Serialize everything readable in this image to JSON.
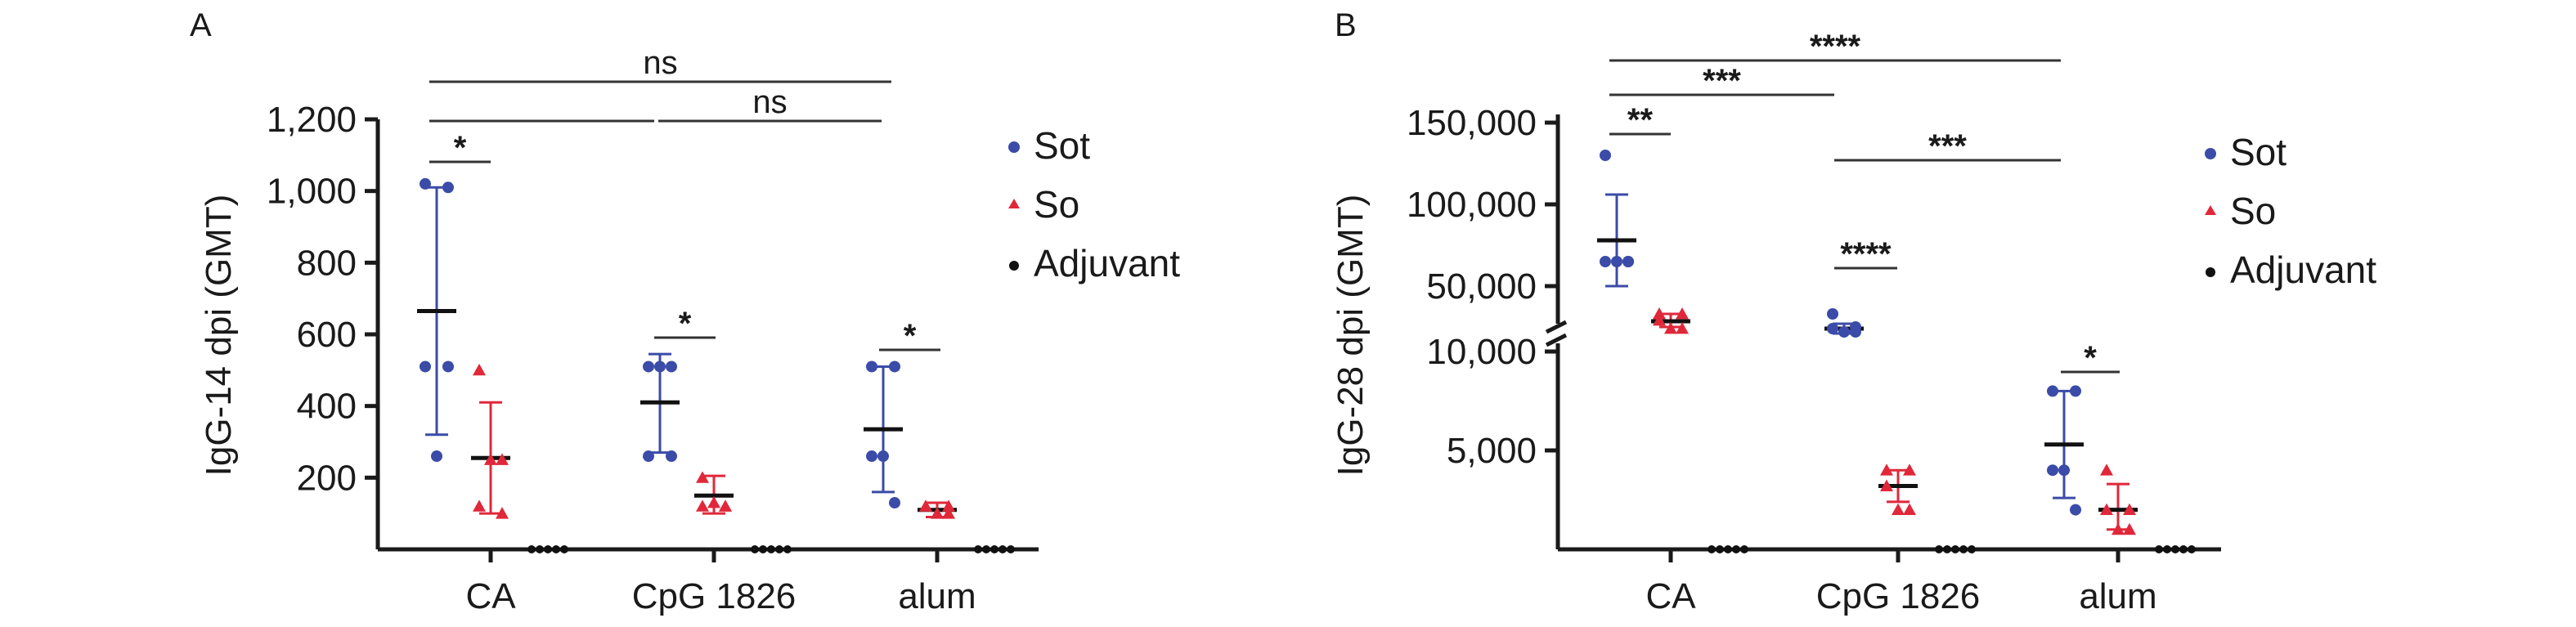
{
  "colors": {
    "Sot": "#3b4ba8",
    "So": "#e0283a",
    "Adjuvant": "#111111",
    "axis": "#1a1a1a"
  },
  "chart_data": [
    {
      "panel": "A",
      "type": "scatter",
      "ylabel": "IgG-14 dpi (GMT)",
      "ylim": [
        0,
        1200
      ],
      "yticks": [
        200,
        400,
        600,
        800,
        1000,
        1200
      ],
      "ytick_labels": [
        "200",
        "400",
        "600",
        "800",
        "1,000",
        "1,200"
      ],
      "categories": [
        "CA",
        "CpG 1826",
        "alum"
      ],
      "legend": [
        "Sot",
        "So",
        "Adjuvant"
      ],
      "legend_position": "right",
      "groups": [
        {
          "category": "CA",
          "series": "Sot",
          "points": [
            1020,
            1010,
            510,
            510,
            260
          ],
          "mean": 665,
          "sd_low": 320,
          "sd_high": 1010
        },
        {
          "category": "CA",
          "series": "So",
          "points": [
            500,
            250,
            120,
            100,
            250
          ],
          "mean": 255,
          "sd_low": 100,
          "sd_high": 410
        },
        {
          "category": "CA",
          "series": "Adjuvant",
          "points": [
            0,
            0,
            0,
            0,
            0
          ]
        },
        {
          "category": "CpG 1826",
          "series": "Sot",
          "points": [
            510,
            510,
            260,
            260,
            510
          ],
          "mean": 410,
          "sd_low": 270,
          "sd_high": 545
        },
        {
          "category": "CpG 1826",
          "series": "So",
          "points": [
            200,
            120,
            120,
            120,
            130
          ],
          "mean": 150,
          "sd_low": 100,
          "sd_high": 205
        },
        {
          "category": "CpG 1826",
          "series": "Adjuvant",
          "points": [
            0,
            0,
            0,
            0,
            0
          ]
        },
        {
          "category": "alum",
          "series": "Sot",
          "points": [
            510,
            510,
            260,
            130,
            260
          ],
          "mean": 335,
          "sd_low": 160,
          "sd_high": 510
        },
        {
          "category": "alum",
          "series": "So",
          "points": [
            120,
            120,
            120,
            100,
            100
          ],
          "mean": 110,
          "sd_low": 90,
          "sd_high": 130
        },
        {
          "category": "alum",
          "series": "Adjuvant",
          "points": [
            0,
            0,
            0,
            0,
            0
          ]
        }
      ],
      "annotations": [
        {
          "label": "ns",
          "from": "CA",
          "to": "alum"
        },
        {
          "label": "ns",
          "from": "CpG 1826",
          "to": "alum"
        },
        {
          "label": "",
          "from": "CA",
          "to": "CpG 1826"
        },
        {
          "label": "*",
          "from": "CA Sot",
          "to": "CA So"
        },
        {
          "label": "*",
          "from": "CpG 1826 Sot",
          "to": "CpG 1826 So"
        },
        {
          "label": "*",
          "from": "alum Sot",
          "to": "alum So"
        }
      ]
    },
    {
      "panel": "B",
      "type": "scatter",
      "ylabel": "IgG-28 dpi (GMT)",
      "yscale": "broken",
      "ylim_lower": [
        0,
        10000
      ],
      "ylim_upper": [
        10000,
        150000
      ],
      "yticks": [
        5000,
        10000,
        50000,
        100000,
        150000
      ],
      "ytick_labels": [
        "5,000",
        "10,000",
        "50,000",
        "100,000",
        "150,000"
      ],
      "categories": [
        "CA",
        "CpG 1826",
        "alum"
      ],
      "legend": [
        "Sot",
        "So",
        "Adjuvant"
      ],
      "legend_position": "right",
      "groups": [
        {
          "category": "CA",
          "series": "Sot",
          "points": [
            130000,
            65000,
            65000,
            65000,
            65000
          ],
          "mean": 78000,
          "sd_low": 50000,
          "sd_high": 106000
        },
        {
          "category": "CA",
          "series": "So",
          "points": [
            33000,
            33000,
            29000,
            24000,
            24000
          ],
          "mean": 28500,
          "sd_low": 25000,
          "sd_high": 33000
        },
        {
          "category": "CA",
          "series": "Adjuvant",
          "points": [
            0,
            0,
            0,
            0,
            0
          ]
        },
        {
          "category": "CpG 1826",
          "series": "Sot",
          "points": [
            33000,
            25000,
            24000,
            22000,
            22000
          ],
          "mean": 24000,
          "sd_low": 21000,
          "sd_high": 27000
        },
        {
          "category": "CpG 1826",
          "series": "So",
          "points": [
            4000,
            4000,
            3200,
            2000,
            2000
          ],
          "mean": 3200,
          "sd_low": 2400,
          "sd_high": 4000
        },
        {
          "category": "CpG 1826",
          "series": "Adjuvant",
          "points": [
            0,
            0,
            0,
            0,
            0
          ]
        },
        {
          "category": "alum",
          "series": "Sot",
          "points": [
            8000,
            8000,
            4000,
            2000,
            4000
          ],
          "mean": 5300,
          "sd_low": 2600,
          "sd_high": 8000
        },
        {
          "category": "alum",
          "series": "So",
          "points": [
            4000,
            2000,
            2000,
            1000,
            1000
          ],
          "mean": 2000,
          "sd_low": 1000,
          "sd_high": 3300
        },
        {
          "category": "alum",
          "series": "Adjuvant",
          "points": [
            0,
            0,
            0,
            0,
            0
          ]
        }
      ],
      "annotations": [
        {
          "label": "****",
          "from": "CA",
          "to": "alum"
        },
        {
          "label": "***",
          "from": "CA",
          "to": "CpG 1826"
        },
        {
          "label": "**",
          "from": "CA Sot",
          "to": "CA So"
        },
        {
          "label": "***",
          "from": "CpG 1826",
          "to": "alum"
        },
        {
          "label": "****",
          "from": "CpG 1826 Sot",
          "to": "CpG 1826 So"
        },
        {
          "label": "*",
          "from": "alum Sot",
          "to": "alum So"
        }
      ]
    }
  ]
}
